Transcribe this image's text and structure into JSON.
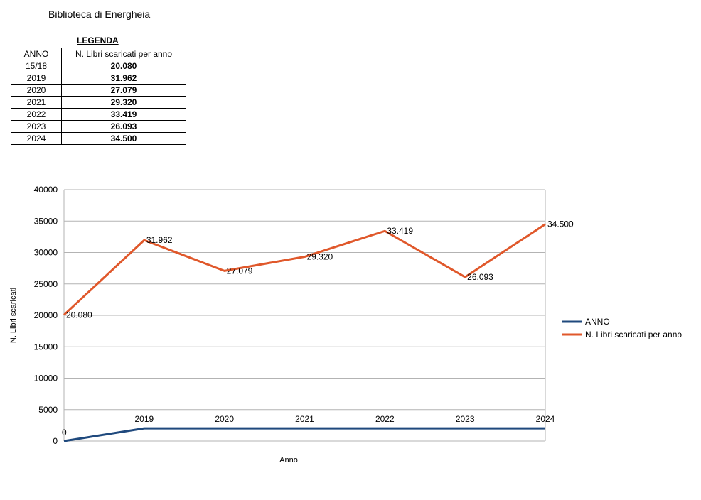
{
  "document": {
    "title": "Biblioteca di Energheia"
  },
  "legend_table": {
    "title": "LEGENDA",
    "headers": [
      "ANNO",
      "N. Libri scaricati per anno"
    ],
    "rows": [
      {
        "year": "15/18",
        "value": "20.080"
      },
      {
        "year": "2019",
        "value": "31.962"
      },
      {
        "year": "2020",
        "value": "27.079"
      },
      {
        "year": "2021",
        "value": "29.320"
      },
      {
        "year": "2022",
        "value": "33.419"
      },
      {
        "year": "2023",
        "value": "26.093"
      },
      {
        "year": "2024",
        "value": "34.500"
      }
    ]
  },
  "chart_data": {
    "type": "line",
    "xlabel": "Anno",
    "ylabel": "N. Libri scaricati",
    "ylim": [
      0,
      40000
    ],
    "yticks": [
      "0",
      "5000",
      "10000",
      "15000",
      "20000",
      "25000",
      "30000",
      "35000",
      "40000"
    ],
    "grid": true,
    "legend_position": "right",
    "categories": [
      "0",
      "2019",
      "2020",
      "2021",
      "2022",
      "2023",
      "2024"
    ],
    "series": [
      {
        "name": "ANNO",
        "color": "#1f497d",
        "values": [
          0,
          2019,
          2020,
          2021,
          2022,
          2023,
          2024
        ],
        "labels": [
          "0",
          "2019",
          "2020",
          "2021",
          "2022",
          "2023",
          "2024"
        ]
      },
      {
        "name": "N. Libri scaricati per anno",
        "color": "#e0582b",
        "values": [
          20080,
          31962,
          27079,
          29320,
          33419,
          26093,
          34500
        ],
        "labels": [
          "20.080",
          "31.962",
          "27.079",
          "29.320",
          "33.419",
          "26.093",
          "34.500"
        ]
      }
    ]
  }
}
